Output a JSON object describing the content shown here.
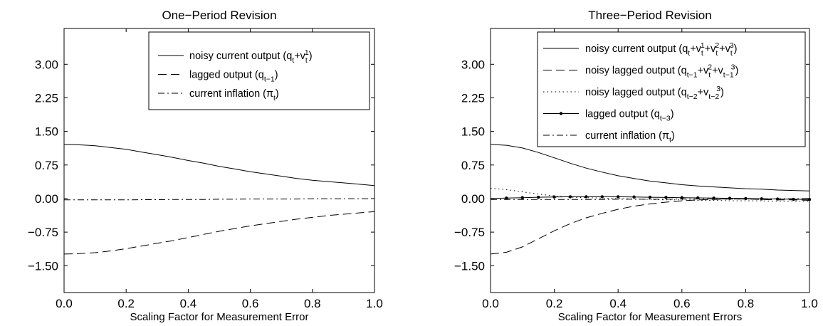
{
  "chart_data": [
    {
      "type": "line",
      "title": "One−Period Revision",
      "xlabel": "Scaling Factor for Measurement Error",
      "ylabel": "",
      "xlim": [
        0.0,
        1.0
      ],
      "ylim": [
        -2.1,
        3.8
      ],
      "xticks": [
        "0.0",
        "0.2",
        "0.4",
        "0.6",
        "0.8",
        "1.0"
      ],
      "yticks": [
        "−1.50",
        "−0.75",
        "0.00",
        "0.75",
        "1.50",
        "2.25",
        "3.00"
      ],
      "grid": false,
      "legend_position": "top-right",
      "x": [
        0.0,
        0.05,
        0.1,
        0.15,
        0.2,
        0.25,
        0.3,
        0.35,
        0.4,
        0.45,
        0.5,
        0.55,
        0.6,
        0.65,
        0.7,
        0.75,
        0.8,
        0.85,
        0.9,
        0.95,
        1.0
      ],
      "series": [
        {
          "legend_parts": [
            "noisy current output (q",
            "t",
            "+v",
            "t",
            "1",
            ")"
          ],
          "style": "solid",
          "values": [
            1.21,
            1.2,
            1.18,
            1.14,
            1.1,
            1.04,
            0.98,
            0.92,
            0.85,
            0.79,
            0.72,
            0.66,
            0.6,
            0.55,
            0.5,
            0.45,
            0.41,
            0.38,
            0.35,
            0.32,
            0.29
          ]
        },
        {
          "legend_parts": [
            "lagged output (q",
            "t−1",
            ")"
          ],
          "style": "dashed",
          "values": [
            -1.24,
            -1.23,
            -1.21,
            -1.17,
            -1.12,
            -1.06,
            -1.0,
            -0.94,
            -0.87,
            -0.8,
            -0.73,
            -0.67,
            -0.61,
            -0.56,
            -0.51,
            -0.46,
            -0.42,
            -0.38,
            -0.35,
            -0.32,
            -0.29
          ]
        },
        {
          "legend_parts": [
            "current inflation (π",
            "t",
            ")"
          ],
          "style": "dashdot",
          "values": [
            -0.03,
            -0.03,
            -0.03,
            -0.03,
            -0.03,
            -0.025,
            -0.025,
            -0.02,
            -0.02,
            -0.02,
            -0.015,
            -0.015,
            -0.01,
            -0.01,
            -0.01,
            -0.01,
            -0.005,
            -0.005,
            -0.005,
            -0.005,
            0.0
          ]
        }
      ]
    },
    {
      "type": "line",
      "title": "Three−Period Revision",
      "xlabel": "Scaling Factor for Measurement Errors",
      "ylabel": "",
      "xlim": [
        0.0,
        1.0
      ],
      "ylim": [
        -2.1,
        3.8
      ],
      "xticks": [
        "0.0",
        "0.2",
        "0.4",
        "0.6",
        "0.8",
        "1.0"
      ],
      "yticks": [
        "−1.50",
        "−0.75",
        "0.00",
        "0.75",
        "1.50",
        "2.25",
        "3.00"
      ],
      "grid": false,
      "legend_position": "top-right",
      "x": [
        0.0,
        0.05,
        0.1,
        0.15,
        0.2,
        0.25,
        0.3,
        0.35,
        0.4,
        0.45,
        0.5,
        0.55,
        0.6,
        0.65,
        0.7,
        0.75,
        0.8,
        0.85,
        0.9,
        0.95,
        1.0
      ],
      "series": [
        {
          "legend_parts": [
            "noisy current output (q",
            "t",
            "+v",
            "t",
            "1",
            "+v",
            "t",
            "2",
            "+v",
            "t",
            "3",
            ")"
          ],
          "style": "solid",
          "values": [
            1.21,
            1.19,
            1.13,
            1.03,
            0.91,
            0.79,
            0.68,
            0.59,
            0.51,
            0.45,
            0.39,
            0.35,
            0.31,
            0.28,
            0.26,
            0.24,
            0.22,
            0.21,
            0.19,
            0.18,
            0.17
          ]
        },
        {
          "legend_parts": [
            "noisy lagged output (q",
            "t−1",
            "+v",
            "t",
            "2",
            "+v",
            "t−1",
            "3",
            ")"
          ],
          "style": "dashed",
          "values": [
            -1.24,
            -1.2,
            -1.08,
            -0.9,
            -0.72,
            -0.56,
            -0.43,
            -0.33,
            -0.24,
            -0.17,
            -0.12,
            -0.08,
            -0.05,
            -0.03,
            -0.02,
            -0.01,
            -0.01,
            -0.02,
            -0.03,
            -0.03,
            -0.04
          ]
        },
        {
          "legend_parts": [
            "noisy lagged output (q",
            "t−2",
            "+v",
            "t−2",
            "3",
            ")"
          ],
          "style": "dotted",
          "values": [
            0.23,
            0.2,
            0.15,
            0.1,
            0.06,
            0.03,
            0.02,
            0.01,
            0.0,
            -0.01,
            -0.02,
            -0.03,
            -0.03,
            -0.04,
            -0.04,
            -0.05,
            -0.05,
            -0.05,
            -0.06,
            -0.06,
            -0.06
          ]
        },
        {
          "legend_parts": [
            "lagged output (q",
            "t−3",
            ")"
          ],
          "style": "solid-marker",
          "values": [
            0.0,
            0.01,
            0.02,
            0.03,
            0.035,
            0.04,
            0.04,
            0.04,
            0.04,
            0.035,
            0.03,
            0.025,
            0.02,
            0.015,
            0.01,
            0.005,
            0.0,
            -0.005,
            -0.01,
            -0.015,
            -0.02
          ]
        },
        {
          "legend_parts": [
            "current inflation (π",
            "t",
            ")"
          ],
          "style": "dashdot",
          "values": [
            -0.02,
            -0.02,
            -0.02,
            -0.02,
            -0.02,
            -0.02,
            -0.02,
            -0.02,
            -0.015,
            -0.015,
            -0.015,
            -0.015,
            -0.01,
            -0.01,
            -0.01,
            -0.01,
            -0.01,
            -0.005,
            -0.005,
            -0.005,
            0.0
          ]
        }
      ]
    }
  ]
}
